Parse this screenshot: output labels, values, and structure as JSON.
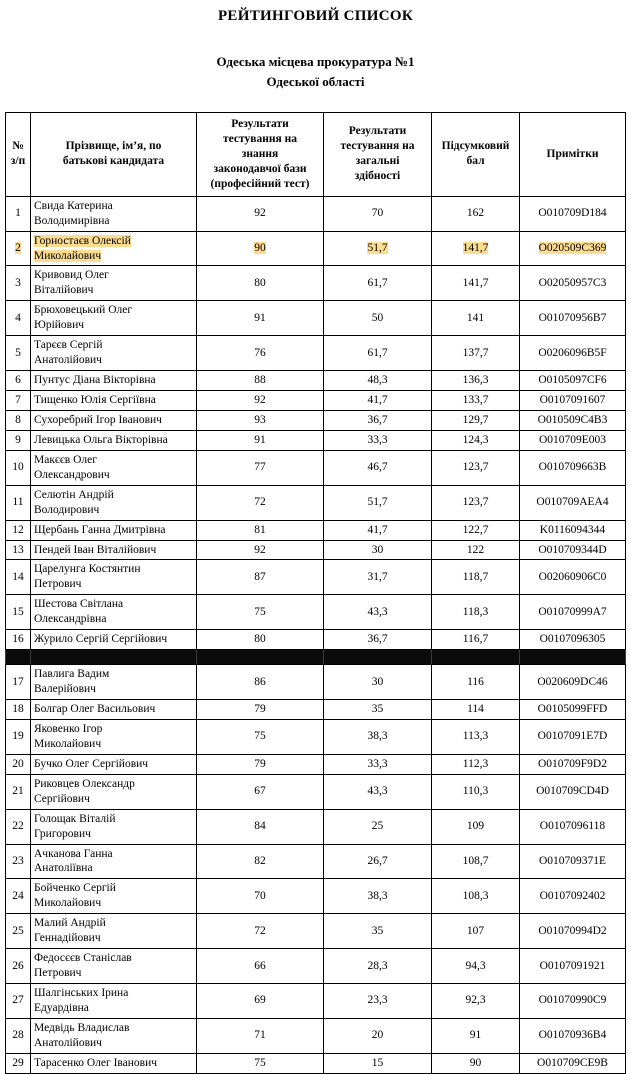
{
  "doc": {
    "title": "РЕЙТИНГОВИЙ СПИСОК",
    "subtitle": "Одеська місцева прокуратура №1\nОдеської області"
  },
  "table": {
    "highlight_color": "#fbdc91",
    "headers": [
      "№\nз/п",
      "Прізвище, ім’я, по\nбатькові кандидата",
      "Результати\nтестування на\nзнання\nзаконодавчої бази\n(професійний тест)",
      "Результати\nтестування на\nзагальні\nздібності",
      "Підсумковий\nбал",
      "Примітки"
    ],
    "rows": [
      {
        "num": "1",
        "name": "Свида Катерина\nВолодимирівна",
        "prof": "92",
        "gen": "70",
        "total": "162",
        "note": "O010709D184",
        "highlighted": false
      },
      {
        "num": "2",
        "name": "Горностаєв Олексій\nМиколайович",
        "prof": "90",
        "gen": "51,7",
        "total": "141,7",
        "note": "O020509C369",
        "highlighted": true
      },
      {
        "num": "3",
        "name": "Кривовид Олег\nВіталійович",
        "prof": "80",
        "gen": "61,7",
        "total": "141,7",
        "note": "O02050957C3",
        "highlighted": false
      },
      {
        "num": "4",
        "name": "Брюховецький Олег\nЮрійович",
        "prof": "91",
        "gen": "50",
        "total": "141",
        "note": "O01070956B7",
        "highlighted": false
      },
      {
        "num": "5",
        "name": "Тарєєв Сергій\nАнатолійович",
        "prof": "76",
        "gen": "61,7",
        "total": "137,7",
        "note": "O0206096B5F",
        "highlighted": false
      },
      {
        "num": "6",
        "name": "Пунтус Діана Вікторівна",
        "prof": "88",
        "gen": "48,3",
        "total": "136,3",
        "note": "O0105097CF6",
        "highlighted": false
      },
      {
        "num": "7",
        "name": "Тищенко Юлія Сергіївна",
        "prof": "92",
        "gen": "41,7",
        "total": "133,7",
        "note": "O0107091607",
        "highlighted": false
      },
      {
        "num": "8",
        "name": "Сухоребрий Ігор Іванович",
        "prof": "93",
        "gen": "36,7",
        "total": "129,7",
        "note": "O010509C4B3",
        "highlighted": false
      },
      {
        "num": "9",
        "name": "Левицька Ольга Вікторівна",
        "prof": "91",
        "gen": "33,3",
        "total": "124,3",
        "note": "O010709E003",
        "highlighted": false
      },
      {
        "num": "10",
        "name": "Макєєв Олег\nОлександрович",
        "prof": "77",
        "gen": "46,7",
        "total": "123,7",
        "note": "O010709663B",
        "highlighted": false
      },
      {
        "num": "11",
        "name": "Селютін Андрій\nВолодирович",
        "prof": "72",
        "gen": "51,7",
        "total": "123,7",
        "note": "O010709AEA4",
        "highlighted": false
      },
      {
        "num": "12",
        "name": "Щербань Ганна Дмитрівна",
        "prof": "81",
        "gen": "41,7",
        "total": "122,7",
        "note": "K0116094344",
        "highlighted": false
      },
      {
        "num": "13",
        "name": "Пендей Іван Віталійович",
        "prof": "92",
        "gen": "30",
        "total": "122",
        "note": "O010709344D",
        "highlighted": false
      },
      {
        "num": "14",
        "name": "Царелунга Костянтин\nПетрович",
        "prof": "87",
        "gen": "31,7",
        "total": "118,7",
        "note": "O02060906C0",
        "highlighted": false
      },
      {
        "num": "15",
        "name": "Шестова Світлана\nОлександрівна",
        "prof": "75",
        "gen": "43,3",
        "total": "118,3",
        "note": "O01070999A7",
        "highlighted": false
      },
      {
        "num": "16",
        "name": "Журило Сергій Сергійович",
        "prof": "80",
        "gen": "36,7",
        "total": "116,7",
        "note": "O0107096305",
        "highlighted": false
      },
      {
        "redacted": true
      },
      {
        "num": "17",
        "name": "Павлига Вадим\nВалерійович",
        "prof": "86",
        "gen": "30",
        "total": "116",
        "note": "O020609DC46",
        "highlighted": false
      },
      {
        "num": "18",
        "name": "Болгар Олег Васильович",
        "prof": "79",
        "gen": "35",
        "total": "114",
        "note": "O0105099FFD",
        "highlighted": false
      },
      {
        "num": "19",
        "name": "Яковенко Ігор\nМиколайович",
        "prof": "75",
        "gen": "38,3",
        "total": "113,3",
        "note": "O0107091E7D",
        "highlighted": false
      },
      {
        "num": "20",
        "name": "Бучко Олег Сергійович",
        "prof": "79",
        "gen": "33,3",
        "total": "112,3",
        "note": "O010709F9D2",
        "highlighted": false
      },
      {
        "num": "21",
        "name": "Риковцев Олександр\nСергійович",
        "prof": "67",
        "gen": "43,3",
        "total": "110,3",
        "note": "O010709CD4D",
        "highlighted": false
      },
      {
        "num": "22",
        "name": "Голощак Віталій\nГригорович",
        "prof": "84",
        "gen": "25",
        "total": "109",
        "note": "O0107096118",
        "highlighted": false
      },
      {
        "num": "23",
        "name": "Ачканова Ганна\nАнатоліївна",
        "prof": "82",
        "gen": "26,7",
        "total": "108,7",
        "note": "O010709371E",
        "highlighted": false
      },
      {
        "num": "24",
        "name": "Бойченко Сергій\nМиколайович",
        "prof": "70",
        "gen": "38,3",
        "total": "108,3",
        "note": "O0107092402",
        "highlighted": false
      },
      {
        "num": "25",
        "name": "Малий Андрій\nГеннадійович",
        "prof": "72",
        "gen": "35",
        "total": "107",
        "note": "O01070994D2",
        "highlighted": false
      },
      {
        "num": "26",
        "name": "Федосєєв Станіслав\nПетрович",
        "prof": "66",
        "gen": "28,3",
        "total": "94,3",
        "note": "O0107091921",
        "highlighted": false
      },
      {
        "num": "27",
        "name": "Шалгінських Ірина\nЕдуардівна",
        "prof": "69",
        "gen": "23,3",
        "total": "92,3",
        "note": "O01070990C9",
        "highlighted": false
      },
      {
        "num": "28",
        "name": "Медвідь Владислав\nАнатолійович",
        "prof": "71",
        "gen": "20",
        "total": "91",
        "note": "O01070936B4",
        "highlighted": false
      },
      {
        "num": "29",
        "name": "Тарасенко Олег Іванович",
        "prof": "75",
        "gen": "15",
        "total": "90",
        "note": "O010709CE9B",
        "highlighted": false
      }
    ]
  }
}
